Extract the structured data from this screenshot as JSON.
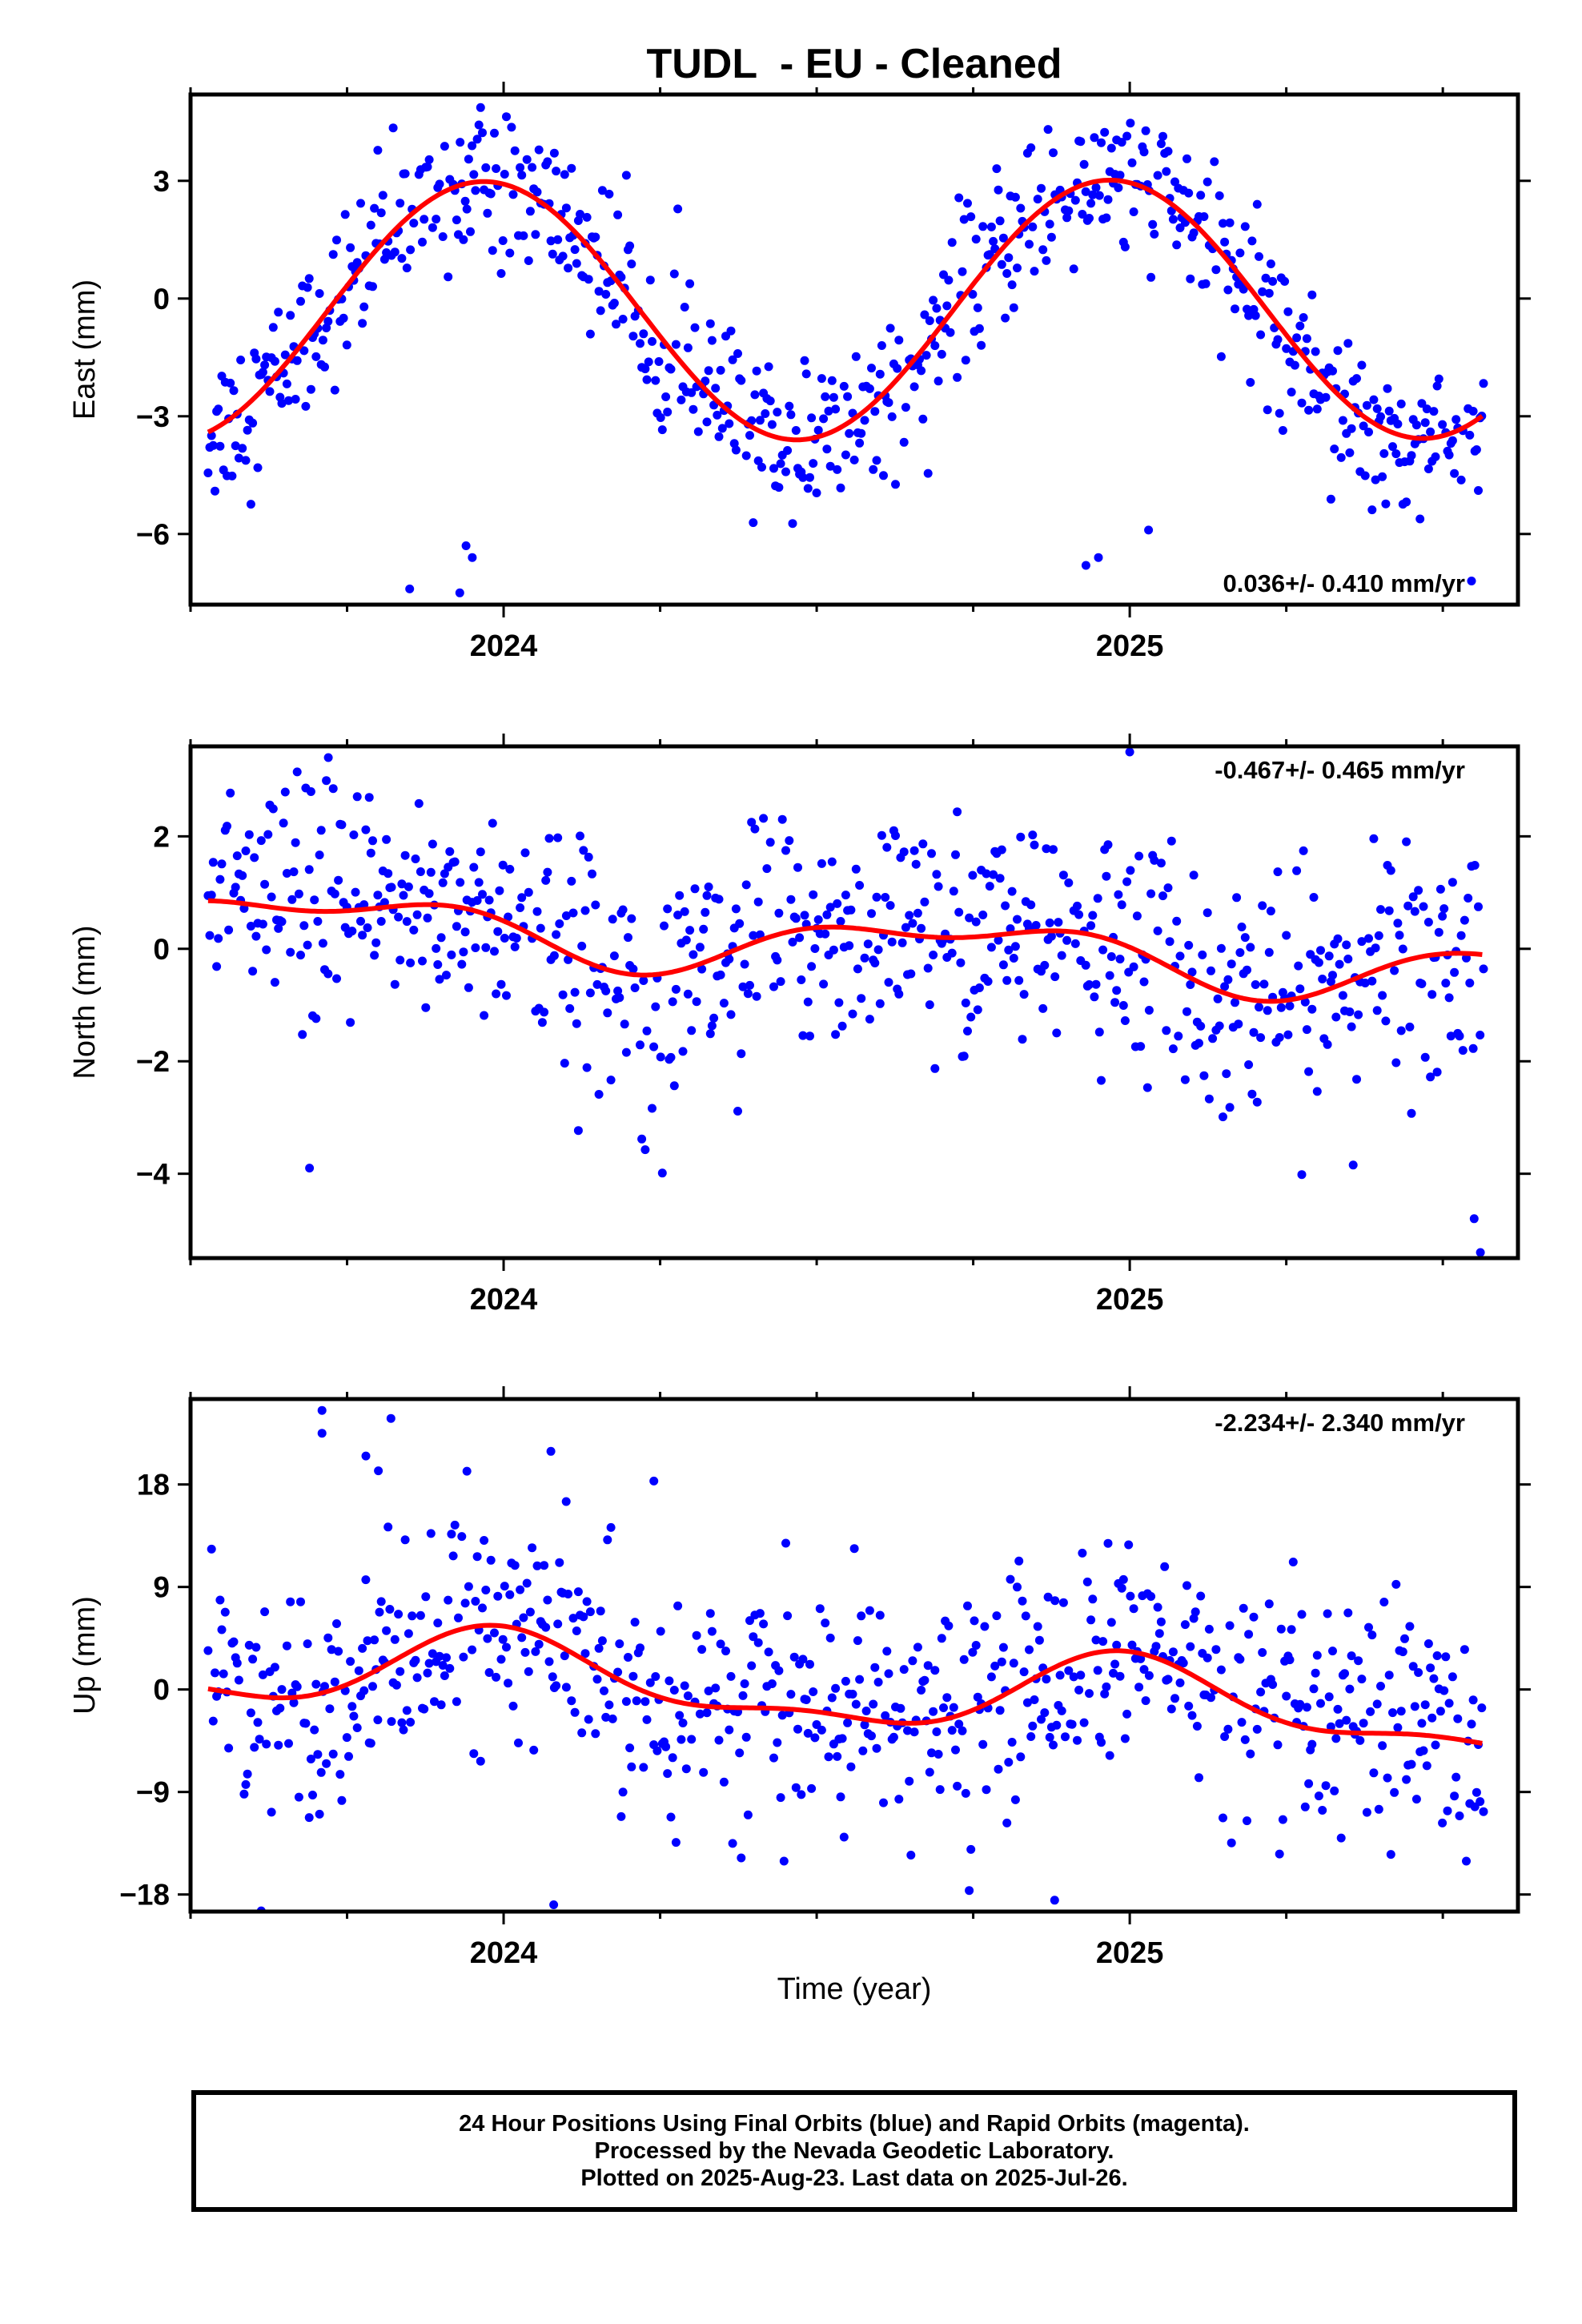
{
  "chart_data": {
    "type": "scatter",
    "title": "TUDL  - EU - Cleaned",
    "xlabel": "Time (year)",
    "xlim": [
      2023.5,
      2025.62
    ],
    "xticks_major": [
      2024,
      2025
    ],
    "x_tick_labels": [
      "2024",
      "2025"
    ],
    "x_minor_step": 0.25,
    "series_colors": {
      "points": "#0000ff",
      "fit": "#ff0000"
    },
    "panels": [
      {
        "name": "east",
        "ylabel": "East (mm)",
        "ylim": [
          -7.8,
          5.2
        ],
        "yticks": [
          3,
          0,
          -3,
          -6
        ],
        "ytick_labels": [
          "3",
          "0",
          "−3",
          "−6"
        ],
        "rate_label": "0.036+/- 0.410 mm/yr",
        "rate_position": "bottom-right",
        "fit": {
          "offset": -0.3,
          "amplitude": 3.3,
          "phase": 0.2,
          "trend": 0.036,
          "semiannual_amp": 0.0,
          "semiannual_phase": 0.0
        },
        "noise": 1.0,
        "outliers": [
          [
            2023.93,
            -7.5
          ],
          [
            2023.95,
            -6.6
          ],
          [
            2023.94,
            -6.3
          ],
          [
            2024.93,
            -6.8
          ],
          [
            2024.95,
            -6.6
          ],
          [
            2023.85,
            -7.4
          ],
          [
            2025.03,
            -5.9
          ]
        ]
      },
      {
        "name": "north",
        "ylabel": "North (mm)",
        "ylim": [
          -5.5,
          3.6
        ],
        "yticks": [
          2,
          0,
          -2,
          -4
        ],
        "ytick_labels": [
          "2",
          "0",
          "−2",
          "−4"
        ],
        "rate_label": "-0.467+/- 0.465 mm/yr",
        "rate_position": "top-right",
        "fit": {
          "offset": 0.1,
          "amplitude": 0.45,
          "phase": 1.7,
          "trend": -0.467,
          "semiannual_amp": 0.25,
          "semiannual_phase": 0.5
        },
        "noise": 1.05,
        "outliers": [
          [
            2025.56,
            -5.4
          ],
          [
            2025.55,
            -4.8
          ],
          [
            2023.69,
            -3.9
          ],
          [
            2025.0,
            3.5
          ],
          [
            2023.72,
            3.4
          ]
        ]
      },
      {
        "name": "up",
        "ylabel": "Up (mm)",
        "ylim": [
          -19.5,
          25.5
        ],
        "yticks": [
          18,
          9,
          0,
          -9,
          -18
        ],
        "ytick_labels": [
          "18",
          "9",
          "0",
          "−9",
          "−18"
        ],
        "rate_label": "-2.234+/- 2.340 mm/yr",
        "rate_position": "top-right",
        "fit": {
          "offset": 0.0,
          "amplitude": 3.2,
          "phase": 0.0,
          "trend": -2.234,
          "semiannual_amp": 1.3,
          "semiannual_phase": 0.3
        },
        "noise": 5.0,
        "outliers": [
          [
            2023.71,
            22.5
          ],
          [
            2023.71,
            24.5
          ],
          [
            2023.78,
            20.5
          ],
          [
            2023.8,
            19.2
          ],
          [
            2023.82,
            23.8
          ],
          [
            2024.24,
            18.3
          ],
          [
            2024.1,
            16.5
          ],
          [
            2024.88,
            -18.5
          ],
          [
            2024.08,
            -18.9
          ]
        ]
      }
    ]
  },
  "footer": {
    "line1": "24 Hour Positions Using Final Orbits (blue) and Rapid Orbits (magenta).",
    "line2": "Processed by the Nevada Geodetic Laboratory.",
    "line3": "Plotted on 2025-Aug-23. Last data on 2025-Jul-26."
  }
}
